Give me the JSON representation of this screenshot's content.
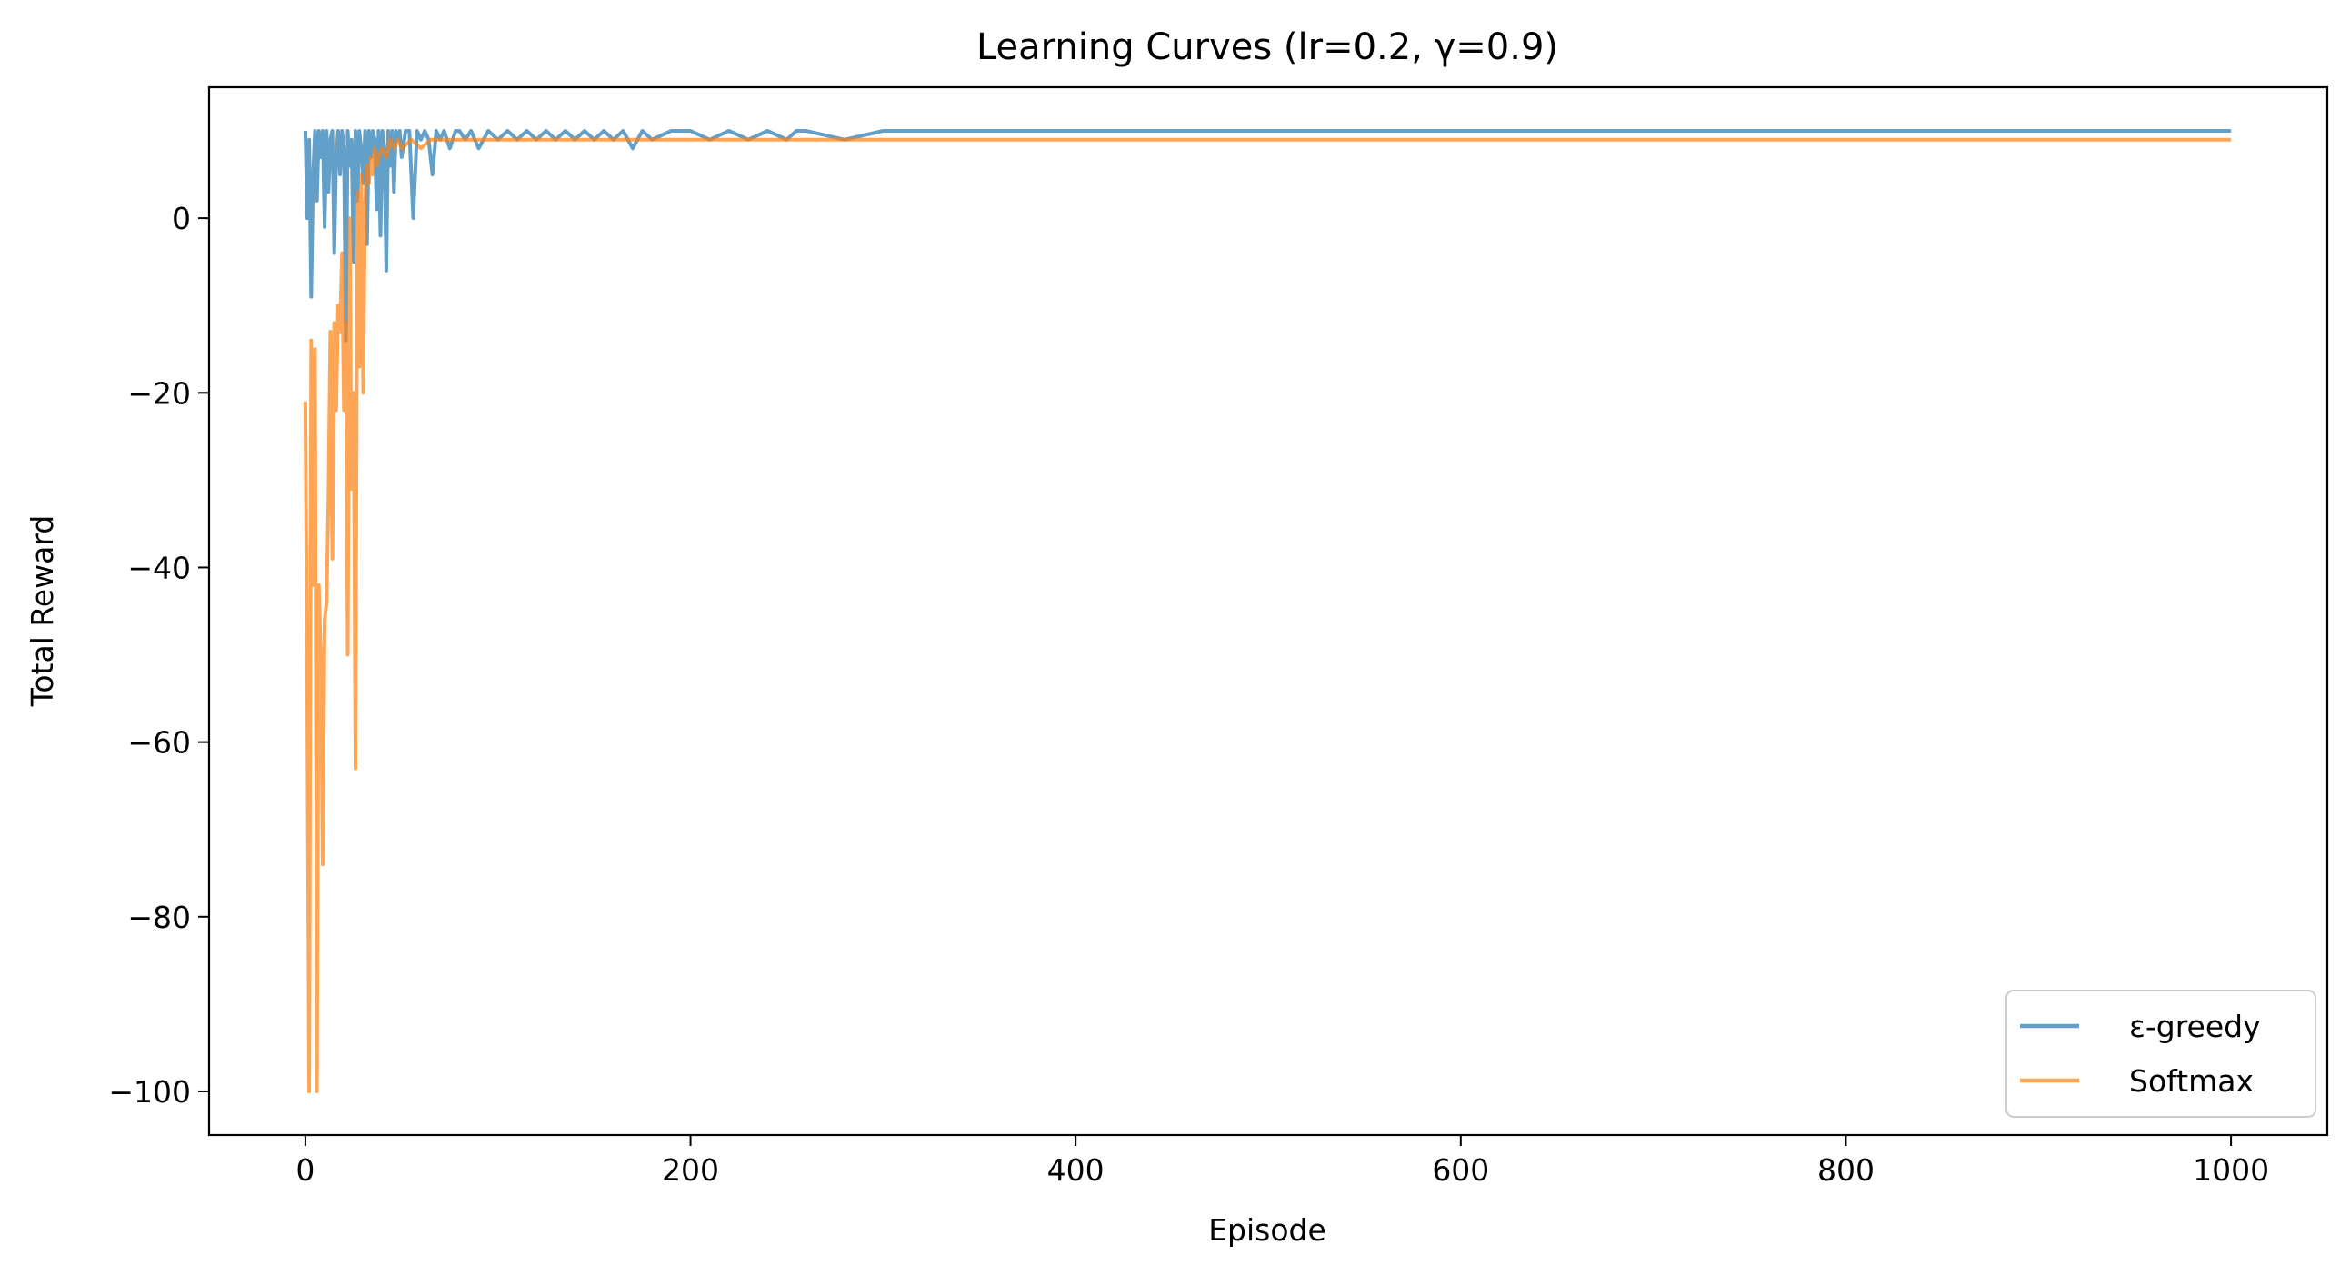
{
  "chart_data": {
    "type": "line",
    "title": "Learning Curves (lr=0.2, γ=0.9)",
    "xlabel": "Episode",
    "ylabel": "Total Reward",
    "xlim": [
      -50,
      1050
    ],
    "ylim": [
      -105,
      15
    ],
    "xticks": [
      0,
      200,
      400,
      600,
      800,
      1000
    ],
    "xtick_labels": [
      "0",
      "200",
      "400",
      "600",
      "800",
      "1000"
    ],
    "yticks": [
      0,
      -20,
      -40,
      -60,
      -80,
      -100
    ],
    "ytick_labels": [
      "0",
      "−20",
      "−40",
      "−60",
      "−80",
      "−100"
    ],
    "legend_position": "bottom-right",
    "grid": false,
    "series": [
      {
        "name": "ε-greedy",
        "color": "#1f77b4",
        "opacity": 0.7,
        "x": [
          0,
          1,
          2,
          3,
          4,
          5,
          6,
          7,
          8,
          9,
          10,
          11,
          12,
          13,
          14,
          15,
          16,
          17,
          18,
          19,
          20,
          21,
          22,
          23,
          24,
          25,
          26,
          27,
          28,
          29,
          30,
          31,
          32,
          33,
          34,
          35,
          36,
          37,
          38,
          39,
          40,
          41,
          42,
          43,
          44,
          45,
          46,
          47,
          48,
          49,
          50,
          52,
          54,
          56,
          58,
          60,
          62,
          64,
          66,
          68,
          70,
          72,
          75,
          78,
          80,
          83,
          86,
          90,
          95,
          100,
          105,
          110,
          115,
          120,
          125,
          130,
          135,
          140,
          145,
          150,
          155,
          160,
          165,
          170,
          175,
          180,
          190,
          200,
          210,
          220,
          230,
          240,
          250,
          255,
          260,
          280,
          300,
          320,
          350,
          400,
          450,
          500,
          550,
          600,
          650,
          700,
          750,
          800,
          850,
          900,
          950,
          1000
        ],
        "y": [
          10,
          0,
          9,
          -9,
          5,
          10,
          2,
          10,
          7,
          10,
          -1,
          10,
          3,
          9,
          10,
          -4,
          7,
          10,
          5,
          10,
          8,
          -14,
          10,
          6,
          9,
          -5,
          10,
          2,
          10,
          8,
          4,
          10,
          -3,
          10,
          7,
          10,
          9,
          1,
          10,
          -2,
          10,
          8,
          -6,
          10,
          6,
          10,
          3,
          10,
          9,
          10,
          7,
          10,
          10,
          0,
          10,
          9,
          10,
          9,
          5,
          10,
          9,
          10,
          8,
          10,
          10,
          9,
          10,
          8,
          10,
          9,
          10,
          9,
          10,
          9,
          10,
          9,
          10,
          9,
          10,
          9,
          10,
          9,
          10,
          8,
          10,
          9,
          10,
          10,
          9,
          10,
          9,
          10,
          9,
          10,
          10,
          9,
          10,
          10,
          10,
          10,
          10,
          10,
          10,
          10,
          10,
          10,
          10,
          10,
          10,
          10,
          10,
          10
        ]
      },
      {
        "name": "Softmax",
        "color": "#ff7f0e",
        "opacity": 0.7,
        "x": [
          0,
          1,
          2,
          3,
          4,
          5,
          6,
          7,
          8,
          9,
          10,
          11,
          12,
          13,
          14,
          15,
          16,
          17,
          18,
          19,
          20,
          21,
          22,
          23,
          24,
          25,
          26,
          27,
          28,
          29,
          30,
          31,
          32,
          33,
          34,
          35,
          36,
          37,
          38,
          40,
          42,
          44,
          46,
          48,
          50,
          55,
          60,
          65,
          70,
          75,
          80,
          90,
          100,
          120,
          150,
          200,
          300,
          400,
          500,
          600,
          700,
          800,
          900,
          1000
        ],
        "y": [
          -21,
          -55,
          -100,
          -14,
          -42,
          -15,
          -100,
          -42,
          -50,
          -74,
          -46,
          -44,
          -32,
          -13,
          -39,
          -12,
          -22,
          -10,
          -13,
          -4,
          -22,
          -12,
          -50,
          0,
          -31,
          -20,
          -63,
          3,
          -17,
          5,
          -20,
          2,
          6,
          4,
          7,
          5,
          8,
          6,
          7,
          8,
          7,
          9,
          8,
          9,
          8,
          9,
          8,
          9,
          9,
          9,
          9,
          9,
          9,
          9,
          9,
          9,
          9,
          9,
          9,
          9,
          9,
          9,
          9,
          9
        ]
      }
    ]
  }
}
